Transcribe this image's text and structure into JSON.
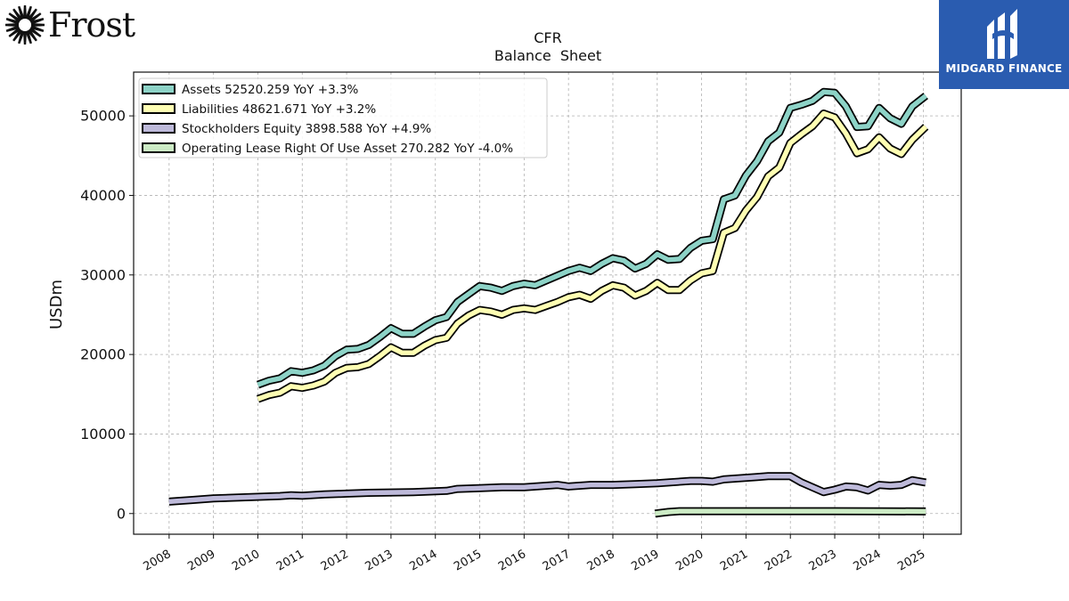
{
  "logos": {
    "left": {
      "name": "Frost"
    },
    "right": {
      "name": "MIDGARD FINANCE"
    }
  },
  "chart_data": {
    "type": "line",
    "title": "CFR",
    "subtitle": "Balance  Sheet",
    "ylabel": "USDm",
    "xlim": [
      2007.2,
      2025.85
    ],
    "ylim": [
      -2600,
      55500
    ],
    "yticks": [
      0,
      10000,
      20000,
      30000,
      40000,
      50000
    ],
    "xticks": [
      2008,
      2009,
      2010,
      2011,
      2012,
      2013,
      2014,
      2015,
      2016,
      2017,
      2018,
      2019,
      2020,
      2021,
      2022,
      2023,
      2024,
      2025
    ],
    "grid": true,
    "legend_position": "top-left",
    "series": [
      {
        "name": "Assets  52520.259 YoY +3.3%",
        "color": "#8dd3c7",
        "points": [
          [
            2010.0,
            16200
          ],
          [
            2010.25,
            16700
          ],
          [
            2010.5,
            17000
          ],
          [
            2010.75,
            17900
          ],
          [
            2011.0,
            17700
          ],
          [
            2011.25,
            18000
          ],
          [
            2011.5,
            18600
          ],
          [
            2011.75,
            19800
          ],
          [
            2012.0,
            20600
          ],
          [
            2012.25,
            20700
          ],
          [
            2012.5,
            21200
          ],
          [
            2012.75,
            22200
          ],
          [
            2013.0,
            23300
          ],
          [
            2013.25,
            22600
          ],
          [
            2013.5,
            22600
          ],
          [
            2013.75,
            23500
          ],
          [
            2014.0,
            24300
          ],
          [
            2014.25,
            24700
          ],
          [
            2014.5,
            26600
          ],
          [
            2014.75,
            27600
          ],
          [
            2015.0,
            28600
          ],
          [
            2015.25,
            28400
          ],
          [
            2015.5,
            28000
          ],
          [
            2015.75,
            28600
          ],
          [
            2016.0,
            28900
          ],
          [
            2016.25,
            28700
          ],
          [
            2016.5,
            29300
          ],
          [
            2016.75,
            29900
          ],
          [
            2017.0,
            30500
          ],
          [
            2017.25,
            30900
          ],
          [
            2017.5,
            30500
          ],
          [
            2017.75,
            31400
          ],
          [
            2018.0,
            32100
          ],
          [
            2018.25,
            31800
          ],
          [
            2018.5,
            30800
          ],
          [
            2018.75,
            31400
          ],
          [
            2019.0,
            32600
          ],
          [
            2019.25,
            31900
          ],
          [
            2019.5,
            32000
          ],
          [
            2019.75,
            33400
          ],
          [
            2020.0,
            34300
          ],
          [
            2020.25,
            34500
          ],
          [
            2020.5,
            39500
          ],
          [
            2020.75,
            40000
          ],
          [
            2021.0,
            42500
          ],
          [
            2021.25,
            44300
          ],
          [
            2021.5,
            46800
          ],
          [
            2021.75,
            47900
          ],
          [
            2022.0,
            51000
          ],
          [
            2022.25,
            51400
          ],
          [
            2022.5,
            51900
          ],
          [
            2022.75,
            53000
          ],
          [
            2023.0,
            52900
          ],
          [
            2023.25,
            51200
          ],
          [
            2023.5,
            48600
          ],
          [
            2023.75,
            48700
          ],
          [
            2024.0,
            51000
          ],
          [
            2024.25,
            49700
          ],
          [
            2024.5,
            49000
          ],
          [
            2024.75,
            51200
          ],
          [
            2025.05,
            52520
          ]
        ]
      },
      {
        "name": "Liabilities  48621.671 YoY +3.2%",
        "color": "#ffffb3",
        "points": [
          [
            2010.0,
            14400
          ],
          [
            2010.25,
            14900
          ],
          [
            2010.5,
            15200
          ],
          [
            2010.75,
            16000
          ],
          [
            2011.0,
            15800
          ],
          [
            2011.25,
            16100
          ],
          [
            2011.5,
            16600
          ],
          [
            2011.75,
            17700
          ],
          [
            2012.0,
            18300
          ],
          [
            2012.25,
            18400
          ],
          [
            2012.5,
            18800
          ],
          [
            2012.75,
            19800
          ],
          [
            2013.0,
            20900
          ],
          [
            2013.25,
            20200
          ],
          [
            2013.5,
            20200
          ],
          [
            2013.75,
            21100
          ],
          [
            2014.0,
            21800
          ],
          [
            2014.25,
            22100
          ],
          [
            2014.5,
            23900
          ],
          [
            2014.75,
            24900
          ],
          [
            2015.0,
            25600
          ],
          [
            2015.25,
            25400
          ],
          [
            2015.5,
            25000
          ],
          [
            2015.75,
            25600
          ],
          [
            2016.0,
            25800
          ],
          [
            2016.25,
            25600
          ],
          [
            2016.5,
            26100
          ],
          [
            2016.75,
            26600
          ],
          [
            2017.0,
            27200
          ],
          [
            2017.25,
            27500
          ],
          [
            2017.5,
            27000
          ],
          [
            2017.75,
            28000
          ],
          [
            2018.0,
            28700
          ],
          [
            2018.25,
            28400
          ],
          [
            2018.5,
            27400
          ],
          [
            2018.75,
            28000
          ],
          [
            2019.0,
            29000
          ],
          [
            2019.25,
            28100
          ],
          [
            2019.5,
            28100
          ],
          [
            2019.75,
            29300
          ],
          [
            2020.0,
            30200
          ],
          [
            2020.25,
            30500
          ],
          [
            2020.5,
            35300
          ],
          [
            2020.75,
            35900
          ],
          [
            2021.0,
            38100
          ],
          [
            2021.25,
            39800
          ],
          [
            2021.5,
            42400
          ],
          [
            2021.75,
            43500
          ],
          [
            2022.0,
            46600
          ],
          [
            2022.25,
            47700
          ],
          [
            2022.5,
            48700
          ],
          [
            2022.75,
            50300
          ],
          [
            2023.0,
            49800
          ],
          [
            2023.25,
            47800
          ],
          [
            2023.5,
            45300
          ],
          [
            2023.75,
            45800
          ],
          [
            2024.0,
            47300
          ],
          [
            2024.25,
            45900
          ],
          [
            2024.5,
            45200
          ],
          [
            2024.75,
            47000
          ],
          [
            2025.05,
            48622
          ]
        ]
      },
      {
        "name": "Stockholders Equity  3898.588 YoY +4.9%",
        "color": "#bebada",
        "points": [
          [
            2008.0,
            1500
          ],
          [
            2008.5,
            1700
          ],
          [
            2009.0,
            1900
          ],
          [
            2009.5,
            2000
          ],
          [
            2010.0,
            2100
          ],
          [
            2010.5,
            2200
          ],
          [
            2010.75,
            2300
          ],
          [
            2011.0,
            2250
          ],
          [
            2011.5,
            2400
          ],
          [
            2012.0,
            2500
          ],
          [
            2012.5,
            2600
          ],
          [
            2013.0,
            2650
          ],
          [
            2013.5,
            2700
          ],
          [
            2014.0,
            2800
          ],
          [
            2014.25,
            2850
          ],
          [
            2014.5,
            3100
          ],
          [
            2015.0,
            3200
          ],
          [
            2015.5,
            3300
          ],
          [
            2016.0,
            3300
          ],
          [
            2016.5,
            3500
          ],
          [
            2016.75,
            3600
          ],
          [
            2017.0,
            3400
          ],
          [
            2017.5,
            3600
          ],
          [
            2018.0,
            3600
          ],
          [
            2018.5,
            3700
          ],
          [
            2019.0,
            3800
          ],
          [
            2019.25,
            3900
          ],
          [
            2019.75,
            4100
          ],
          [
            2020.0,
            4100
          ],
          [
            2020.25,
            4000
          ],
          [
            2020.5,
            4300
          ],
          [
            2020.75,
            4400
          ],
          [
            2021.0,
            4500
          ],
          [
            2021.25,
            4600
          ],
          [
            2021.5,
            4700
          ],
          [
            2021.75,
            4700
          ],
          [
            2022.0,
            4700
          ],
          [
            2022.25,
            3900
          ],
          [
            2022.5,
            3300
          ],
          [
            2022.75,
            2700
          ],
          [
            2023.0,
            3000
          ],
          [
            2023.25,
            3400
          ],
          [
            2023.5,
            3300
          ],
          [
            2023.75,
            2900
          ],
          [
            2024.0,
            3600
          ],
          [
            2024.25,
            3500
          ],
          [
            2024.5,
            3600
          ],
          [
            2024.75,
            4200
          ],
          [
            2025.05,
            3899
          ]
        ]
      },
      {
        "name": "Operating Lease Right Of Use Asset  270.282 YoY -4.0%",
        "color": "#ccebc5",
        "points": [
          [
            2018.95,
            0
          ],
          [
            2019.25,
            200
          ],
          [
            2019.5,
            300
          ],
          [
            2020.0,
            300
          ],
          [
            2021.0,
            300
          ],
          [
            2022.0,
            300
          ],
          [
            2023.0,
            300
          ],
          [
            2024.0,
            290
          ],
          [
            2025.05,
            270
          ]
        ]
      }
    ]
  }
}
